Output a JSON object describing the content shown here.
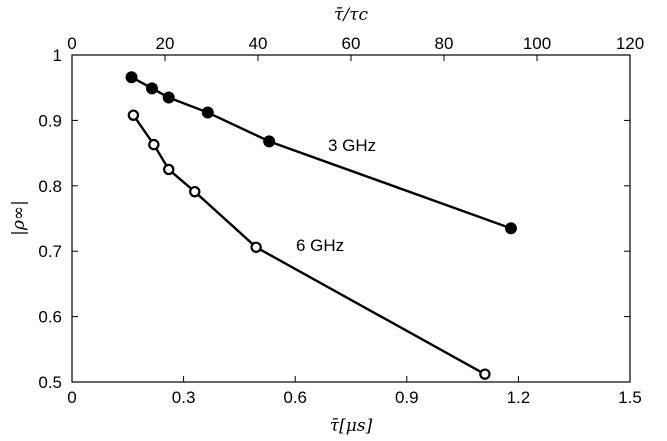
{
  "chart_data": {
    "type": "line",
    "xlabel": "τ̄[μs]",
    "ylabel": "|ρ∞|",
    "x2label": "τ̄/τc",
    "xlim": [
      0,
      1.5
    ],
    "ylim": [
      0.5,
      1
    ],
    "x2lim": [
      0,
      120
    ],
    "xticks": [
      "0",
      "0.3",
      "0.6",
      "0.9",
      "1.2",
      "1.5"
    ],
    "yticks": [
      "0.5",
      "0.6",
      "0.7",
      "0.8",
      "0.9",
      "1"
    ],
    "x2ticks": [
      "0",
      "20",
      "40",
      "60",
      "80",
      "100",
      "120"
    ],
    "grid": false,
    "series": [
      {
        "name": "3 GHz",
        "marker": "filled-circle",
        "color": "#000000",
        "x": [
          0.16,
          0.215,
          0.26,
          0.365,
          0.53,
          1.18
        ],
        "y": [
          0.966,
          0.949,
          0.935,
          0.912,
          0.868,
          0.735
        ]
      },
      {
        "name": "6 GHz",
        "marker": "open-circle",
        "color": "#000000",
        "x": [
          0.165,
          0.22,
          0.26,
          0.33,
          0.495,
          1.11
        ],
        "y": [
          0.908,
          0.863,
          0.825,
          0.791,
          0.706,
          0.512
        ]
      }
    ]
  }
}
